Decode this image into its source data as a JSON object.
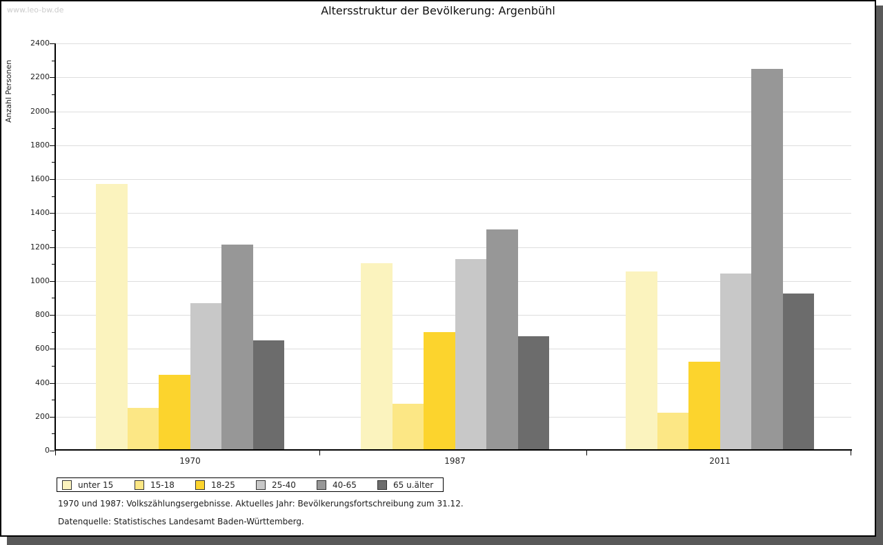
{
  "watermark": "www.leo-bw.de",
  "footer": {
    "line1": "1970 und 1987: Volkszählungsergebnisse. Aktuelles Jahr: Bevölkerungsfortschreibung zum 31.12.",
    "line2": "Datenquelle: Statistisches Landesamt Baden-Württemberg."
  },
  "chart_data": {
    "type": "bar",
    "title": "Altersstruktur der Bevölkerung: Argenbühl",
    "xlabel": "",
    "ylabel": "Anzahl Personen",
    "ylim": [
      0,
      2400
    ],
    "yticks": [
      0,
      200,
      400,
      600,
      800,
      1000,
      1200,
      1400,
      1600,
      1800,
      2000,
      2200,
      2400
    ],
    "ytick_step": 200,
    "minor_tick_step": 100,
    "grid": true,
    "legend_position": "bottom",
    "categories": [
      "1970",
      "1987",
      "2011"
    ],
    "series": [
      {
        "name": "unter 15",
        "color": "#FBF3BE",
        "values": [
          1570,
          1105,
          1055
        ]
      },
      {
        "name": "15-18",
        "color": "#FCE785",
        "values": [
          250,
          275,
          225
        ]
      },
      {
        "name": "18-25",
        "color": "#FCD42D",
        "values": [
          445,
          700,
          525
        ]
      },
      {
        "name": "25-40",
        "color": "#C8C8C8",
        "values": [
          870,
          1130,
          1045
        ]
      },
      {
        "name": "40-65",
        "color": "#979797",
        "values": [
          1215,
          1305,
          2250
        ]
      },
      {
        "name": "65 u.älter",
        "color": "#6C6C6C",
        "values": [
          650,
          675,
          925
        ]
      }
    ],
    "colors": {
      "gridline": "#dddddd",
      "axis": "#000000",
      "text": "#222222",
      "watermark": "#cccccc",
      "shadow": "#595959"
    }
  }
}
